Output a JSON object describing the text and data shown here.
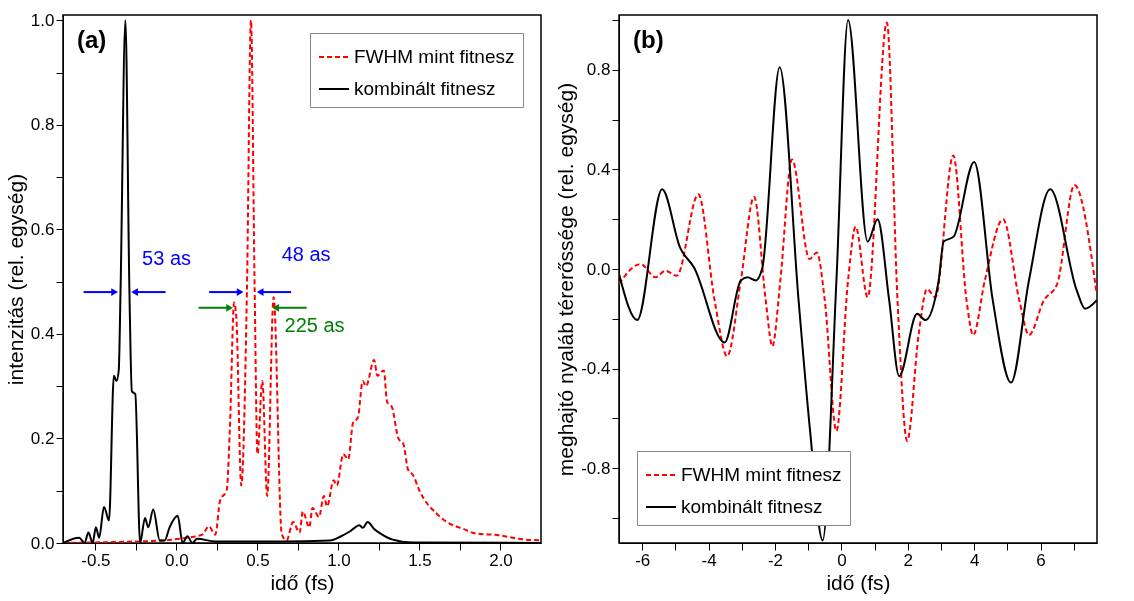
{
  "chart_data": [
    {
      "type": "line",
      "xlabel": "idő (fs)",
      "ylabel": "intenzitás (rel. egység)",
      "legend": "top right",
      "grid": false,
      "xlim": [
        -0.7,
        2.25
      ],
      "ylim": [
        0,
        1.01
      ],
      "xticks": [
        {
          "value": -0.5,
          "label": "-0.5"
        },
        {
          "value": -0.25,
          "label": null
        },
        {
          "value": 0,
          "label": "0.0"
        },
        {
          "value": 0.25,
          "label": null
        },
        {
          "value": 0.5,
          "label": "0.5"
        },
        {
          "value": 0.75,
          "label": null
        },
        {
          "value": 1,
          "label": "1.0"
        },
        {
          "value": 1.25,
          "label": null
        },
        {
          "value": 1.5,
          "label": "1.5"
        },
        {
          "value": 1.75,
          "label": null
        },
        {
          "value": 2,
          "label": "2.0"
        }
      ],
      "yticks": [
        {
          "value": 0,
          "label": "0.0"
        },
        {
          "value": 0.1,
          "label": null
        },
        {
          "value": 0.2,
          "label": "0.2"
        },
        {
          "value": 0.3,
          "label": null
        },
        {
          "value": 0.4,
          "label": "0.4"
        },
        {
          "value": 0.5,
          "label": null
        },
        {
          "value": 0.6,
          "label": "0.6"
        },
        {
          "value": 0.7,
          "label": null
        },
        {
          "value": 0.8,
          "label": "0.8"
        },
        {
          "value": 0.9,
          "label": null
        },
        {
          "value": 1,
          "label": "1.0"
        }
      ],
      "annotations": [
        "(a)",
        {
          "text": "53 as",
          "x": -0.32,
          "y": 0.48
        },
        {
          "text": "48 as",
          "x": 0.455,
          "y": 0.48
        },
        {
          "text": "225 as",
          "x": 0.47,
          "y": 0.45
        }
      ],
      "series": [
        {
          "name": "FWHM mint fitnesz",
          "color": "#ff0000",
          "line_style": "dashed",
          "x": [
            -0.7,
            -0.37,
            -0.08,
            0.06,
            0.16,
            0.2,
            0.24,
            0.27,
            0.31,
            0.33,
            0.356,
            0.37,
            0.4,
            0.435,
            0.46,
            0.483,
            0.5,
            0.53,
            0.56,
            0.6,
            0.65,
            0.68,
            0.72,
            0.76,
            0.78,
            0.82,
            0.84,
            0.88,
            0.91,
            0.93,
            0.97,
            0.99,
            1.03,
            1.06,
            1.09,
            1.12,
            1.15,
            1.17,
            1.22,
            1.24,
            1.28,
            1.3,
            1.33,
            1.37,
            1.4,
            1.43,
            1.46,
            1.5,
            1.61,
            1.67,
            1.77,
            1.85,
            1.99,
            2.11,
            2.25
          ],
          "values": [
            0,
            0.002,
            0.005,
            0.01,
            0.016,
            0.032,
            0.016,
            0.082,
            0.1,
            0.22,
            0.46,
            0.43,
            0.11,
            0.48,
            1.0,
            0.48,
            0.17,
            0.31,
            0.09,
            0.47,
            0.017,
            0.005,
            0.04,
            0.02,
            0.06,
            0.03,
            0.067,
            0.05,
            0.09,
            0.07,
            0.12,
            0.11,
            0.17,
            0.16,
            0.23,
            0.24,
            0.31,
            0.3,
            0.35,
            0.32,
            0.33,
            0.27,
            0.26,
            0.2,
            0.19,
            0.14,
            0.13,
            0.1,
            0.055,
            0.04,
            0.027,
            0.018,
            0.015,
            0.008,
            0.005
          ]
        },
        {
          "name": "kombinált fitnesz",
          "color": "#000000",
          "line_style": "solid",
          "x": [
            -0.7,
            -0.6,
            -0.567,
            -0.543,
            -0.517,
            -0.497,
            -0.477,
            -0.447,
            -0.416,
            -0.386,
            -0.37,
            -0.356,
            -0.345,
            -0.315,
            -0.29,
            -0.275,
            -0.254,
            -0.224,
            -0.194,
            -0.174,
            -0.143,
            -0.103,
            -0.073,
            -0.042,
            0.008,
            0.038,
            0.068,
            0.098,
            0.128,
            0.24,
            0.64,
            0.95,
            1.01,
            1.07,
            1.13,
            1.15,
            1.18,
            1.22,
            1.26,
            1.33,
            1.46,
            2.25
          ],
          "values": [
            0,
            0.01,
            0,
            0.02,
            0,
            0.03,
            0.01,
            0.069,
            0.043,
            0.32,
            0.31,
            0.33,
            0.48,
            1.0,
            0.48,
            0.29,
            0.285,
            0,
            0.048,
            0.03,
            0.064,
            0.005,
            0.005,
            0.03,
            0.052,
            0,
            0.013,
            0,
            0.008,
            0.003,
            0.003,
            0.005,
            0.012,
            0.022,
            0.034,
            0.029,
            0.04,
            0.027,
            0.018,
            0.007,
            0.001,
            0
          ]
        }
      ]
    },
    {
      "type": "line",
      "xlabel": "idő (fs)",
      "ylabel": "meghajtó nyaláb térerőssége (rel. egység)",
      "legend": "bottom left",
      "grid": false,
      "xlim": [
        -6.7,
        7.7
      ],
      "ylim": [
        -1.1,
        1.02
      ],
      "xticks": [
        {
          "value": -6,
          "label": "-6"
        },
        {
          "value": -5,
          "label": null
        },
        {
          "value": -4,
          "label": "-4"
        },
        {
          "value": -3,
          "label": null
        },
        {
          "value": -2,
          "label": "-2"
        },
        {
          "value": -1,
          "label": null
        },
        {
          "value": 0,
          "label": "0"
        },
        {
          "value": 1,
          "label": null
        },
        {
          "value": 2,
          "label": "2"
        },
        {
          "value": 3,
          "label": null
        },
        {
          "value": 4,
          "label": "4"
        },
        {
          "value": 5,
          "label": null
        },
        {
          "value": 6,
          "label": "6"
        },
        {
          "value": 7,
          "label": null
        }
      ],
      "yticks": [
        {
          "value": -1,
          "label": null
        },
        {
          "value": -0.8,
          "label": "-0.8"
        },
        {
          "value": -0.6,
          "label": null
        },
        {
          "value": -0.4,
          "label": "-0.4"
        },
        {
          "value": -0.2,
          "label": null
        },
        {
          "value": 0,
          "label": "0.0"
        },
        {
          "value": 0.2,
          "label": null
        },
        {
          "value": 0.4,
          "label": "0.4"
        },
        {
          "value": 0.6,
          "label": null
        },
        {
          "value": 0.8,
          "label": "0.8"
        },
        {
          "value": 1,
          "label": null
        }
      ],
      "annotations": [
        "(b)"
      ],
      "series": [
        {
          "name": "FWHM mint fitnesz",
          "color": "#ff0000",
          "line_style": "dashed",
          "x": [
            -6.7,
            -6.05,
            -5.6,
            -5.3,
            -4.96,
            -4.31,
            -3.82,
            -3.44,
            -3.03,
            -2.63,
            -2.28,
            -2.08,
            -1.84,
            -1.49,
            -0.96,
            -0.74,
            -0.5,
            -0.15,
            0.2,
            0.43,
            0.79,
            1.37,
            1.69,
            1.98,
            2.33,
            2.58,
            2.83,
            3.37,
            3.77,
            3.97,
            4.32,
            4.87,
            5.36,
            5.65,
            6.1,
            6.5,
            7.02,
            7.69
          ],
          "values": [
            -0.06,
            0.02,
            -0.033,
            -0.007,
            -0.027,
            0.3,
            -0.126,
            -0.35,
            -0.046,
            0.29,
            -0.126,
            -0.31,
            -0.046,
            0.44,
            0.04,
            0.066,
            -0.126,
            -0.65,
            -0.046,
            0.17,
            -0.113,
            0.99,
            -0.126,
            -0.69,
            -0.26,
            -0.08,
            -0.113,
            0.456,
            -0.126,
            -0.265,
            -0.046,
            0.2,
            -0.126,
            -0.265,
            -0.126,
            -0.06,
            0.337,
            -0.1
          ]
        },
        {
          "name": "kombinált fitnesz",
          "color": "#000000",
          "line_style": "solid",
          "x": [
            -6.7,
            -6.15,
            -5.4,
            -4.86,
            -4.44,
            -3.52,
            -3.03,
            -2.83,
            -2.58,
            -2.38,
            -1.86,
            -1.29,
            -0.94,
            -0.565,
            -0.15,
            0.2,
            0.79,
            1.09,
            1.44,
            1.74,
            2.28,
            2.53,
            2.93,
            3.08,
            3.38,
            4.0,
            4.56,
            5.11,
            5.65,
            6.29,
            7.09,
            7.34,
            7.69
          ],
          "values": [
            -0.02,
            -0.205,
            0.32,
            0.086,
            0.006,
            -0.295,
            -0.046,
            -0.033,
            -0.046,
            0.006,
            0.81,
            -0.126,
            -0.655,
            -1.09,
            -0.046,
            1.0,
            0.11,
            0.2,
            -0.126,
            -0.43,
            -0.18,
            -0.205,
            -0.046,
            0.11,
            0.13,
            0.43,
            -0.126,
            -0.456,
            -0.046,
            0.32,
            -0.086,
            -0.159,
            -0.126
          ]
        }
      ]
    }
  ]
}
